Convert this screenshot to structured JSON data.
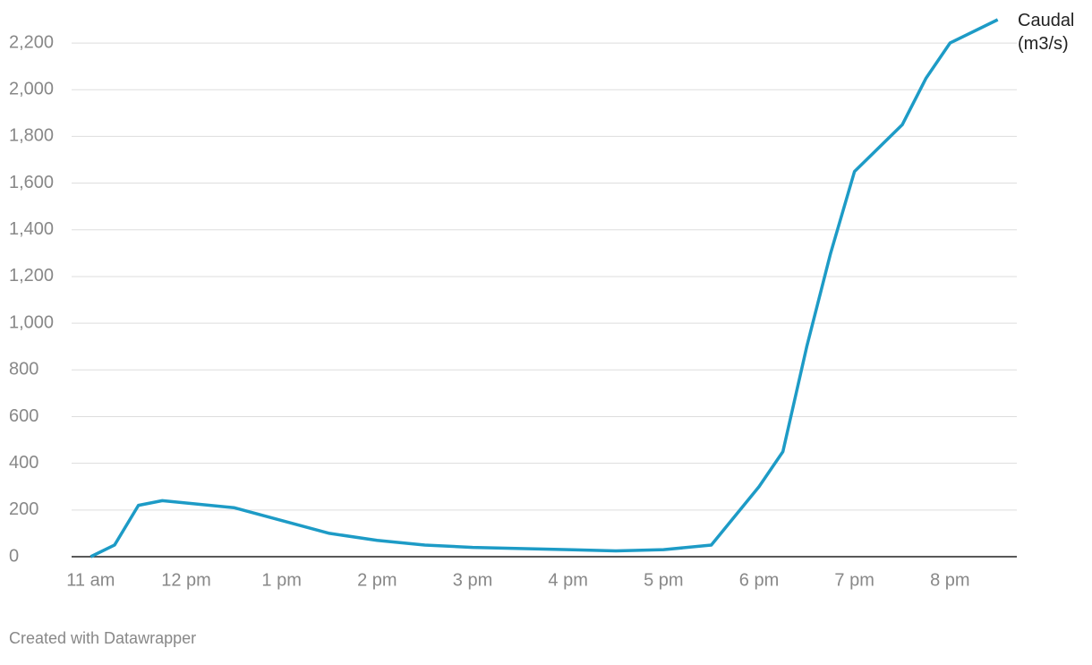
{
  "chart_data": {
    "type": "line",
    "x": [
      11,
      11.25,
      11.5,
      11.75,
      12.5,
      13,
      13.5,
      14,
      14.5,
      15,
      16,
      16.5,
      17,
      17.5,
      18,
      18.25,
      18.5,
      18.75,
      19,
      19.5,
      19.75,
      20,
      20.5
    ],
    "series": [
      {
        "name": "Caudal (m3/s)",
        "color": "#1d9bc6",
        "values": [
          0,
          50,
          220,
          240,
          210,
          155,
          100,
          70,
          50,
          40,
          30,
          25,
          30,
          50,
          300,
          450,
          900,
          1300,
          1650,
          1850,
          2050,
          2200,
          2300
        ]
      }
    ],
    "xlim": [
      10.8,
      20.7
    ],
    "xticks": [
      {
        "value": 11,
        "label": "11 am"
      },
      {
        "value": 12,
        "label": "12 pm"
      },
      {
        "value": 13,
        "label": "1 pm"
      },
      {
        "value": 14,
        "label": "2 pm"
      },
      {
        "value": 15,
        "label": "3 pm"
      },
      {
        "value": 16,
        "label": "4 pm"
      },
      {
        "value": 17,
        "label": "5 pm"
      },
      {
        "value": 18,
        "label": "6 pm"
      },
      {
        "value": 19,
        "label": "7 pm"
      },
      {
        "value": 20,
        "label": "8 pm"
      }
    ],
    "ylim": [
      0,
      2300
    ],
    "yticks": [
      0,
      200,
      400,
      600,
      800,
      {
        "value": 1000,
        "label": "1,000"
      },
      {
        "value": 1200,
        "label": "1,200"
      },
      {
        "value": 1400,
        "label": "1,400"
      },
      {
        "value": 1600,
        "label": "1,600"
      },
      {
        "value": 1800,
        "label": "1,800"
      },
      {
        "value": 2000,
        "label": "2,000"
      },
      {
        "value": 2200,
        "label": "2,200"
      }
    ],
    "grid": true,
    "footer": "Created with Datawrapper"
  }
}
